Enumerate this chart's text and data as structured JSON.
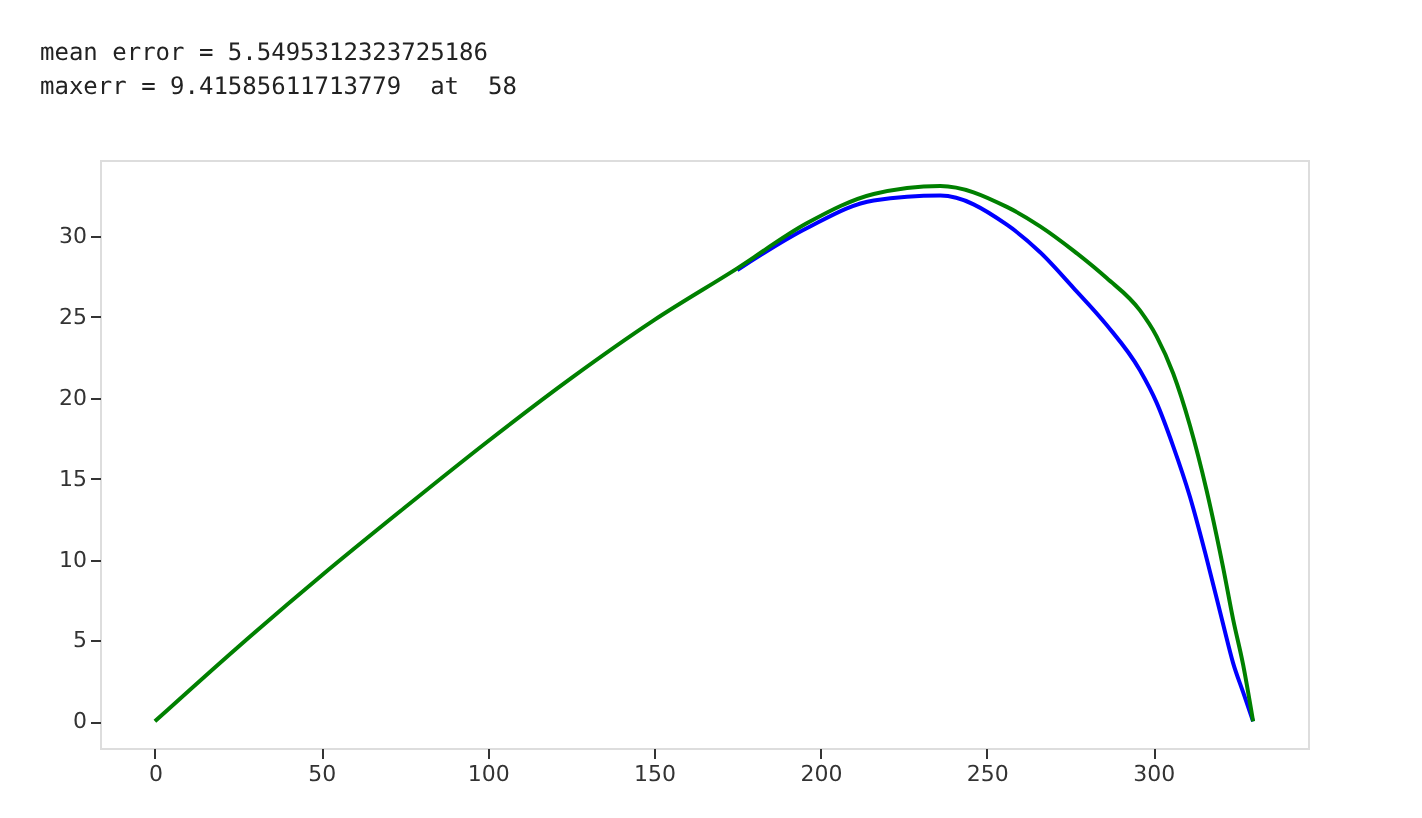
{
  "chart_data": {
    "type": "line",
    "annotations": [
      "mean error = 5.5495312323725186",
      "maxerr = 9.41585611713779  at  58"
    ],
    "x": [
      0,
      25,
      50,
      75,
      100,
      125,
      150,
      175,
      196,
      216,
      236,
      256,
      266,
      276,
      286,
      296,
      301,
      306,
      311,
      316,
      321,
      324,
      327,
      330
    ],
    "series": [
      {
        "color": "#0000ff",
        "x": [
          175,
          196,
          216,
          236,
          256,
          266,
          276,
          286,
          296,
          301,
          306,
          311,
          316,
          321,
          324,
          327,
          330
        ],
        "values": [
          27.9,
          30.5,
          32.2,
          32.5,
          30.7,
          29.0,
          26.8,
          24.5,
          21.7,
          19.7,
          17.0,
          13.9,
          10.1,
          6.0,
          3.6,
          1.8,
          0
        ]
      },
      {
        "color": "#008000",
        "values": [
          0,
          4.6,
          9.0,
          13.2,
          17.3,
          21.2,
          24.8,
          28.0,
          30.8,
          32.6,
          33.1,
          31.8,
          30.6,
          29.1,
          27.4,
          25.4,
          23.8,
          21.5,
          18.3,
          14.3,
          9.5,
          6.3,
          3.5,
          0
        ]
      }
    ],
    "xlim": [
      -16.5,
      346.5
    ],
    "ylim": [
      -1.65,
      34.7
    ],
    "xticks": [
      0,
      50,
      100,
      150,
      200,
      250,
      300
    ],
    "yticks": [
      0,
      5,
      10,
      15,
      20,
      25,
      30
    ],
    "grid": false,
    "legend": false
  }
}
